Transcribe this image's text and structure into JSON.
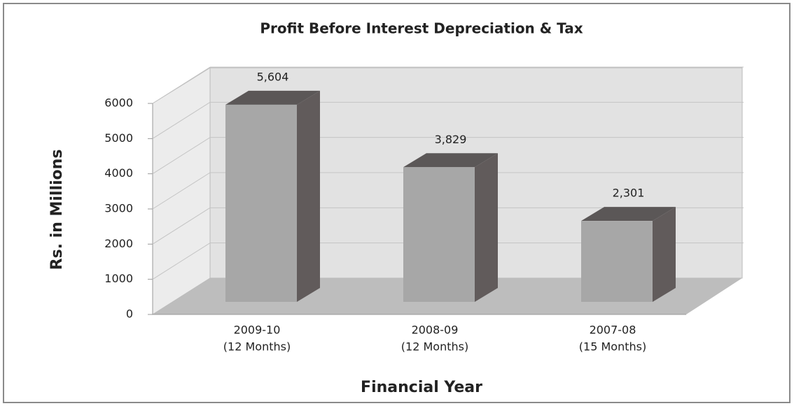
{
  "chart_data": {
    "type": "bar3d",
    "title": "Profit Before Interest Depreciation & Tax",
    "ylabel": "Rs. in Millions",
    "xlabel": "Financial Year",
    "categories": [
      [
        "2009-10",
        "(12 Months)"
      ],
      [
        "2008-09",
        "(12 Months)"
      ],
      [
        "2007-08",
        "(15 Months)"
      ]
    ],
    "values": [
      5604,
      3829,
      2301
    ],
    "value_labels": [
      "5,604",
      "3,829",
      "2,301"
    ],
    "colors": {
      "front": "#a7a7a7",
      "top": "#5b5757",
      "side": "#615b5b"
    },
    "ylim": [
      0,
      6000
    ],
    "yticks": [
      0,
      1000,
      2000,
      3000,
      4000,
      5000,
      6000
    ],
    "grid": true
  }
}
